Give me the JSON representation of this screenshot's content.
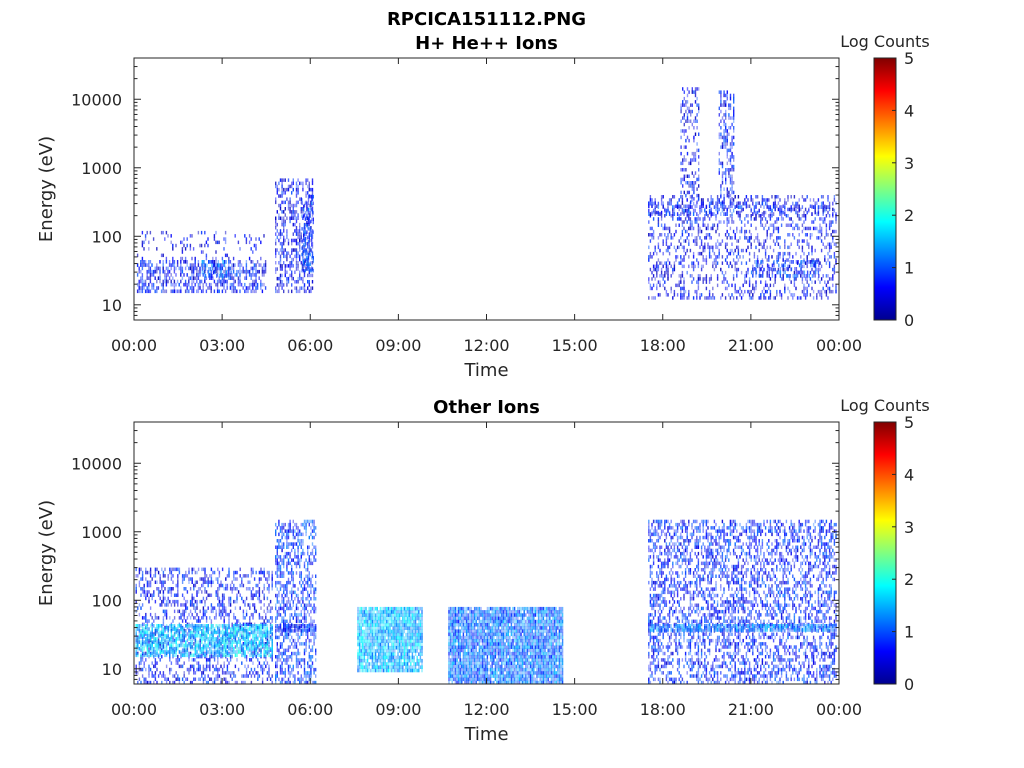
{
  "figure_title": "RPCICA151112.PNG",
  "panels": [
    {
      "title": "H+ He++ Ions",
      "xlabel": "Time",
      "ylabel": "Energy (eV)",
      "colorbar_label": "Log Counts"
    },
    {
      "title": "Other Ions",
      "xlabel": "Time",
      "ylabel": "Energy (eV)",
      "colorbar_label": "Log Counts"
    }
  ],
  "chart_data": [
    {
      "type": "heatmap",
      "title": "H+ He++ Ions",
      "xlabel": "Time",
      "ylabel": "Energy (eV)",
      "x_unit": "hours",
      "xlim": [
        0,
        24
      ],
      "ylim": [
        6,
        40000
      ],
      "yscale": "log",
      "x_ticks": [
        0,
        3,
        6,
        9,
        12,
        15,
        18,
        21,
        24
      ],
      "x_tick_labels": [
        "00:00",
        "03:00",
        "06:00",
        "09:00",
        "12:00",
        "15:00",
        "18:00",
        "21:00",
        "00:00"
      ],
      "y_ticks": [
        10,
        100,
        1000,
        10000
      ],
      "y_tick_labels": [
        "10",
        "100",
        "1000",
        "10000"
      ],
      "colorbar": {
        "label": "Log Counts",
        "range": [
          0,
          5
        ],
        "ticks": [
          "0",
          "1",
          "2",
          "3",
          "4",
          "5"
        ],
        "colormap": "jet"
      },
      "regions": [
        {
          "t_start": 0.1,
          "t_end": 4.5,
          "e_min": 15,
          "e_max": 45,
          "log_counts": 0.4,
          "density": 0.55
        },
        {
          "t_start": 0.1,
          "t_end": 4.5,
          "e_min": 45,
          "e_max": 120,
          "log_counts": 0.2,
          "density": 0.12
        },
        {
          "t_start": 2.3,
          "t_end": 3.3,
          "e_min": 25,
          "e_max": 45,
          "log_counts": 0.8,
          "density": 0.6
        },
        {
          "t_start": 4.8,
          "t_end": 6.1,
          "e_min": 15,
          "e_max": 700,
          "log_counts": 0.3,
          "density": 0.45
        },
        {
          "t_start": 5.7,
          "t_end": 6.1,
          "e_min": 30,
          "e_max": 400,
          "log_counts": 0.6,
          "density": 0.5
        },
        {
          "t_start": 17.5,
          "t_end": 23.9,
          "e_min": 12,
          "e_max": 400,
          "log_counts": 0.3,
          "density": 0.3
        },
        {
          "t_start": 17.5,
          "t_end": 23.9,
          "e_min": 200,
          "e_max": 320,
          "log_counts": 0.5,
          "density": 0.3
        },
        {
          "t_start": 18.6,
          "t_end": 19.2,
          "e_min": 300,
          "e_max": 15000,
          "log_counts": 0.3,
          "density": 0.35
        },
        {
          "t_start": 19.9,
          "t_end": 20.4,
          "e_min": 300,
          "e_max": 15000,
          "log_counts": 0.4,
          "density": 0.45
        },
        {
          "t_start": 21.0,
          "t_end": 23.3,
          "e_min": 25,
          "e_max": 45,
          "log_counts": 0.6,
          "density": 0.45
        }
      ]
    },
    {
      "type": "heatmap",
      "title": "Other Ions",
      "xlabel": "Time",
      "ylabel": "Energy (eV)",
      "x_unit": "hours",
      "xlim": [
        0,
        24
      ],
      "ylim": [
        6,
        40000
      ],
      "yscale": "log",
      "x_ticks": [
        0,
        3,
        6,
        9,
        12,
        15,
        18,
        21,
        24
      ],
      "x_tick_labels": [
        "00:00",
        "03:00",
        "06:00",
        "09:00",
        "12:00",
        "15:00",
        "18:00",
        "21:00",
        "00:00"
      ],
      "y_ticks": [
        10,
        100,
        1000,
        10000
      ],
      "y_tick_labels": [
        "10",
        "100",
        "1000",
        "10000"
      ],
      "colorbar": {
        "label": "Log Counts",
        "range": [
          0,
          5
        ],
        "ticks": [
          "0",
          "1",
          "2",
          "3",
          "4",
          "5"
        ],
        "colormap": "jet"
      },
      "regions": [
        {
          "t_start": 0.05,
          "t_end": 4.7,
          "e_min": 6,
          "e_max": 300,
          "log_counts": 0.4,
          "density": 0.35
        },
        {
          "t_start": 0.05,
          "t_end": 4.7,
          "e_min": 15,
          "e_max": 45,
          "log_counts": 1.4,
          "density": 0.8
        },
        {
          "t_start": 4.8,
          "t_end": 6.2,
          "e_min": 6,
          "e_max": 1500,
          "log_counts": 0.6,
          "density": 0.5
        },
        {
          "t_start": 4.8,
          "t_end": 6.2,
          "e_min": 35,
          "e_max": 45,
          "log_counts": 0.5,
          "density": 0.95
        },
        {
          "t_start": 7.6,
          "t_end": 9.8,
          "e_min": 9,
          "e_max": 80,
          "log_counts": 1.3,
          "density": 0.95
        },
        {
          "t_start": 10.7,
          "t_end": 14.6,
          "e_min": 6,
          "e_max": 80,
          "log_counts": 0.9,
          "density": 0.95
        },
        {
          "t_start": 17.5,
          "t_end": 23.9,
          "e_min": 6,
          "e_max": 1500,
          "log_counts": 0.5,
          "density": 0.45
        },
        {
          "t_start": 17.5,
          "t_end": 23.9,
          "e_min": 35,
          "e_max": 45,
          "log_counts": 1.0,
          "density": 0.85
        }
      ]
    }
  ]
}
